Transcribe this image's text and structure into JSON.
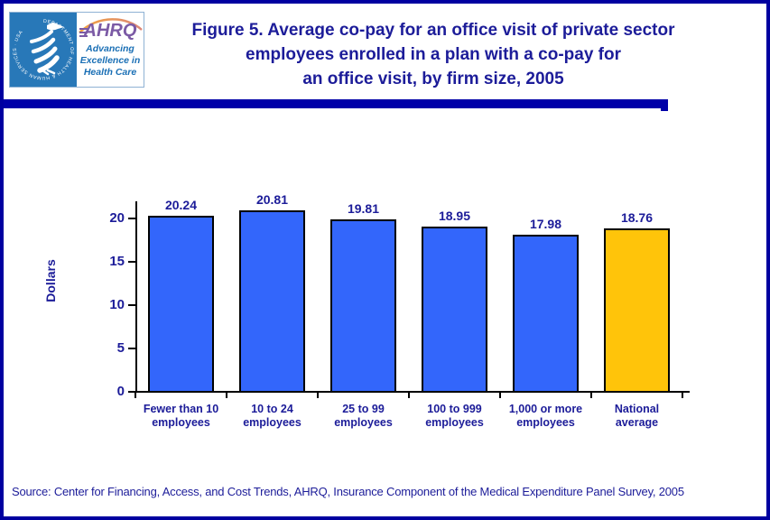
{
  "header": {
    "logo": {
      "hhs_seal_text": "DEPARTMENT OF HEALTH & HUMAN SERVICES · USA",
      "ahrq_acronym": "AHRQ",
      "ahrq_tagline": "Advancing\nExcellence in\nHealth Care"
    },
    "title_lines": [
      "Figure 5. Average co-pay for an office visit of private sector",
      "employees enrolled in a plan with a co-pay for",
      "an office visit, by firm size, 2005"
    ]
  },
  "chart_data": {
    "type": "bar",
    "title": "Figure 5. Average co-pay for an office visit of private sector employees enrolled in a plan with a co-pay for an office visit, by firm size, 2005",
    "xlabel": "",
    "ylabel": "Dollars",
    "ylim": [
      0,
      22
    ],
    "yticks": [
      0,
      5,
      10,
      15,
      20
    ],
    "grid": false,
    "legend": "none",
    "categories": [
      "Fewer than 10\nemployees",
      "10 to 24\nemployees",
      "25 to 99\nemployees",
      "100 to 999\nemployees",
      "1,000 or more\nemployees",
      "National\naverage"
    ],
    "values": [
      20.24,
      20.81,
      19.81,
      18.95,
      17.98,
      18.76
    ],
    "value_labels": [
      "20.24",
      "20.81",
      "19.81",
      "18.95",
      "17.98",
      "18.76"
    ],
    "bar_colors": [
      "#3366FB",
      "#3366FB",
      "#3366FB",
      "#3366FB",
      "#3366FB",
      "#FFC40A"
    ],
    "bar_border_color": "#000000",
    "axis_color": "#000000",
    "label_color": "#1C1C99"
  },
  "footer": {
    "source": "Source: Center for Financing, Access, and Cost Trends, AHRQ, Insurance Component of the Medical Expenditure Panel Survey, 2005"
  },
  "colors": {
    "navy_text": "#1C1C99",
    "page_border": "#0000A0",
    "divider": "#0000A8",
    "hhs_blue": "#2878B8",
    "ahrq_purple": "#7B5AA5",
    "tagline_blue": "#1A6FB5",
    "bar_blue": "#3366FB",
    "bar_gold": "#FFC40A"
  }
}
